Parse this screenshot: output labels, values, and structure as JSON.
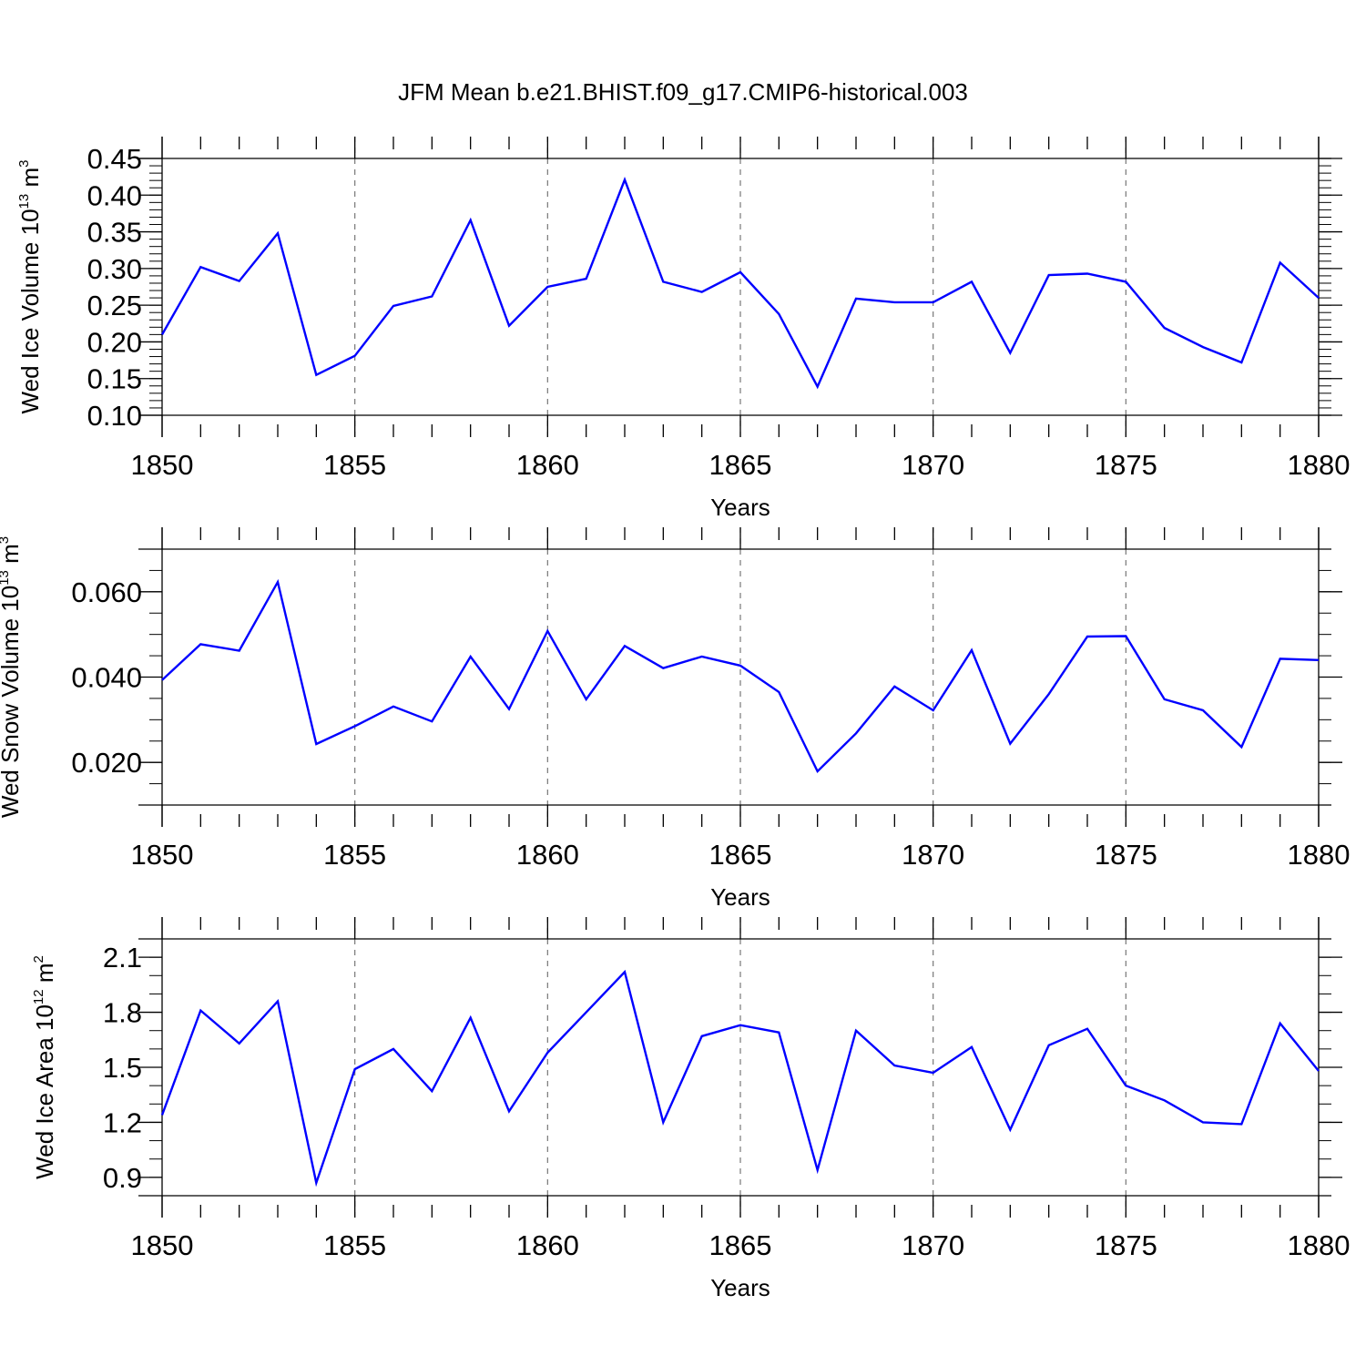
{
  "title": "JFM Mean b.e21.BHIST.f09_g17.CMIP6-historical.003",
  "colors": {
    "series": "#0000ff",
    "axis": "#000000",
    "grid": "#777777"
  },
  "chart_data": [
    {
      "type": "line",
      "title": "JFM Mean b.e21.BHIST.f09_g17.CMIP6-historical.003",
      "xlabel": "Years",
      "ylabel": {
        "main": "Wed Ice Volume 10",
        "sup": "13",
        "unit": " m",
        "unit_sup": "3"
      },
      "xlim": [
        1850,
        1880
      ],
      "ylim": [
        0.1,
        0.45
      ],
      "x_ticks": [
        1850,
        1855,
        1860,
        1865,
        1870,
        1875,
        1880
      ],
      "x_tick_labels": [
        "1850",
        "1855",
        "1860",
        "1865",
        "1870",
        "1875",
        "1880"
      ],
      "y_ticks": [
        0.1,
        0.15,
        0.2,
        0.25,
        0.3,
        0.35,
        0.4,
        0.45
      ],
      "y_tick_labels": [
        "0.10",
        "0.15",
        "0.20",
        "0.25",
        "0.30",
        "0.35",
        "0.40",
        "0.45"
      ],
      "y_minor_step": 0.01,
      "grid": "vertical dashed at major x ticks",
      "x": [
        1850,
        1851,
        1852,
        1853,
        1854,
        1855,
        1856,
        1857,
        1858,
        1859,
        1860,
        1861,
        1862,
        1863,
        1864,
        1865,
        1866,
        1867,
        1868,
        1869,
        1870,
        1871,
        1872,
        1873,
        1874,
        1875,
        1876,
        1877,
        1878,
        1879,
        1880
      ],
      "values": [
        0.21,
        0.302,
        0.283,
        0.348,
        0.155,
        0.181,
        0.249,
        0.262,
        0.366,
        0.222,
        0.275,
        0.286,
        0.421,
        0.282,
        0.268,
        0.295,
        0.238,
        0.139,
        0.259,
        0.254,
        0.254,
        0.282,
        0.185,
        0.291,
        0.293,
        0.282,
        0.219,
        0.193,
        0.172,
        0.308,
        0.26
      ]
    },
    {
      "type": "line",
      "xlabel": "Years",
      "ylabel": {
        "main": "Wed Snow Volume 10",
        "sup": "13",
        "unit": " m",
        "unit_sup": "3"
      },
      "xlim": [
        1850,
        1880
      ],
      "ylim": [
        0.01,
        0.07
      ],
      "x_ticks": [
        1850,
        1855,
        1860,
        1865,
        1870,
        1875,
        1880
      ],
      "x_tick_labels": [
        "1850",
        "1855",
        "1860",
        "1865",
        "1870",
        "1875",
        "1880"
      ],
      "y_ticks": [
        0.02,
        0.04,
        0.06
      ],
      "y_tick_labels": [
        "0.020",
        "0.040",
        "0.060"
      ],
      "y_minor_step": 0.005,
      "grid": "vertical dashed at major x ticks",
      "x": [
        1850,
        1851,
        1852,
        1853,
        1854,
        1855,
        1856,
        1857,
        1858,
        1859,
        1860,
        1861,
        1862,
        1863,
        1864,
        1865,
        1866,
        1867,
        1868,
        1869,
        1870,
        1871,
        1872,
        1873,
        1874,
        1875,
        1876,
        1877,
        1878,
        1879,
        1880
      ],
      "values": [
        0.0393,
        0.0477,
        0.0462,
        0.0623,
        0.0243,
        0.0285,
        0.0331,
        0.0296,
        0.0448,
        0.0325,
        0.0508,
        0.0348,
        0.0473,
        0.0421,
        0.0448,
        0.0427,
        0.0365,
        0.0179,
        0.0268,
        0.0378,
        0.0322,
        0.0463,
        0.0244,
        0.036,
        0.0495,
        0.0496,
        0.0348,
        0.0322,
        0.0236,
        0.0443,
        0.044
      ]
    },
    {
      "type": "line",
      "xlabel": "Years",
      "ylabel": {
        "main": "Wed Ice Area 10",
        "sup": "12",
        "unit": " m",
        "unit_sup": "2"
      },
      "xlim": [
        1850,
        1880
      ],
      "ylim": [
        0.8,
        2.2
      ],
      "x_ticks": [
        1850,
        1855,
        1860,
        1865,
        1870,
        1875,
        1880
      ],
      "x_tick_labels": [
        "1850",
        "1855",
        "1860",
        "1865",
        "1870",
        "1875",
        "1880"
      ],
      "y_ticks": [
        0.9,
        1.2,
        1.5,
        1.8,
        2.1
      ],
      "y_tick_labels": [
        "0.9",
        "1.2",
        "1.5",
        "1.8",
        "2.1"
      ],
      "y_minor_step": 0.1,
      "grid": "vertical dashed at major x ticks",
      "x": [
        1850,
        1851,
        1852,
        1853,
        1854,
        1855,
        1856,
        1857,
        1858,
        1859,
        1860,
        1861,
        1862,
        1863,
        1864,
        1865,
        1866,
        1867,
        1868,
        1869,
        1870,
        1871,
        1872,
        1873,
        1874,
        1875,
        1876,
        1877,
        1878,
        1879,
        1880
      ],
      "values": [
        1.24,
        1.81,
        1.63,
        1.86,
        0.87,
        1.49,
        1.6,
        1.37,
        1.77,
        1.26,
        1.58,
        1.8,
        2.02,
        1.2,
        1.67,
        1.73,
        1.69,
        0.94,
        1.7,
        1.51,
        1.47,
        1.61,
        1.16,
        1.62,
        1.71,
        1.4,
        1.32,
        1.2,
        1.19,
        1.74,
        1.48
      ]
    }
  ]
}
